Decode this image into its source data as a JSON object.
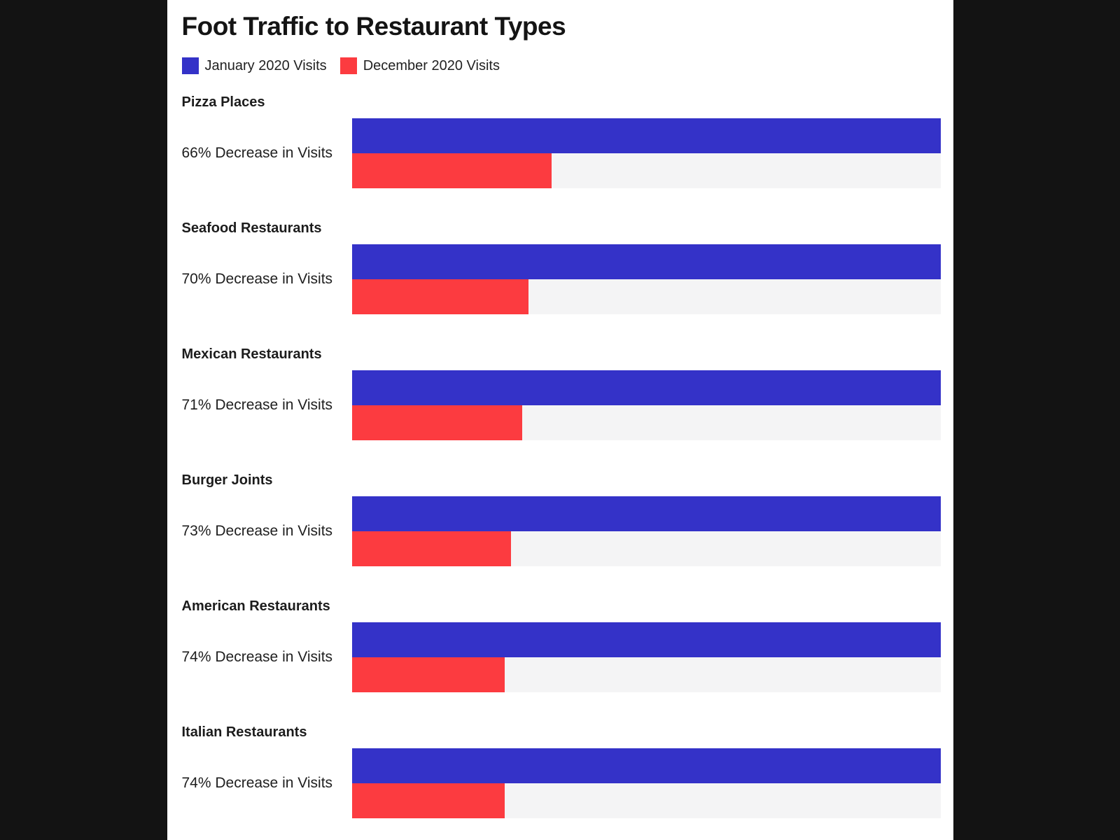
{
  "chart": {
    "title": "Foot Traffic to Restaurant Types",
    "legend": [
      {
        "label": "January 2020 Visits",
        "color": "#3432C8"
      },
      {
        "label": "December 2020 Visits",
        "color": "#FC3B40"
      }
    ]
  },
  "chart_data": {
    "type": "bar",
    "orientation": "horizontal",
    "title": "Foot Traffic to Restaurant Types",
    "legend_position": "top",
    "grid": false,
    "xlim_pct_of_january": [
      0,
      100
    ],
    "track_color": "#F4F4F5",
    "categories": [
      "Pizza Places",
      "Seafood Restaurants",
      "Mexican Restaurants",
      "Burger Joints",
      "American Restaurants",
      "Italian Restaurants"
    ],
    "series": [
      {
        "name": "January 2020 Visits",
        "color": "#3432C8",
        "values_pct_of_january": [
          100,
          100,
          100,
          100,
          100,
          100
        ]
      },
      {
        "name": "December 2020 Visits",
        "color": "#FC3B40",
        "values_pct_of_january": [
          34,
          30,
          29,
          27,
          26,
          26
        ]
      }
    ],
    "decrease_pct": [
      66,
      70,
      71,
      73,
      74,
      74
    ],
    "rows": [
      {
        "category": "Pizza Places",
        "label": "66% Decrease in Visits",
        "january_pct": 100,
        "december_pct": 34
      },
      {
        "category": "Seafood Restaurants",
        "label": "70% Decrease in Visits",
        "january_pct": 100,
        "december_pct": 30
      },
      {
        "category": "Mexican Restaurants",
        "label": "71% Decrease in Visits",
        "january_pct": 100,
        "december_pct": 29
      },
      {
        "category": "Burger Joints",
        "label": "73% Decrease in Visits",
        "january_pct": 100,
        "december_pct": 27
      },
      {
        "category": "American Restaurants",
        "label": "74% Decrease in Visits",
        "january_pct": 100,
        "december_pct": 26
      },
      {
        "category": "Italian Restaurants",
        "label": "74% Decrease in Visits",
        "january_pct": 100,
        "december_pct": 26
      }
    ]
  },
  "colors": {
    "side_background": "#131313",
    "panel_background": "#FFFFFF",
    "january_blue": "#3432C8",
    "december_red": "#FC3B40",
    "bar_track": "#F4F4F5"
  }
}
